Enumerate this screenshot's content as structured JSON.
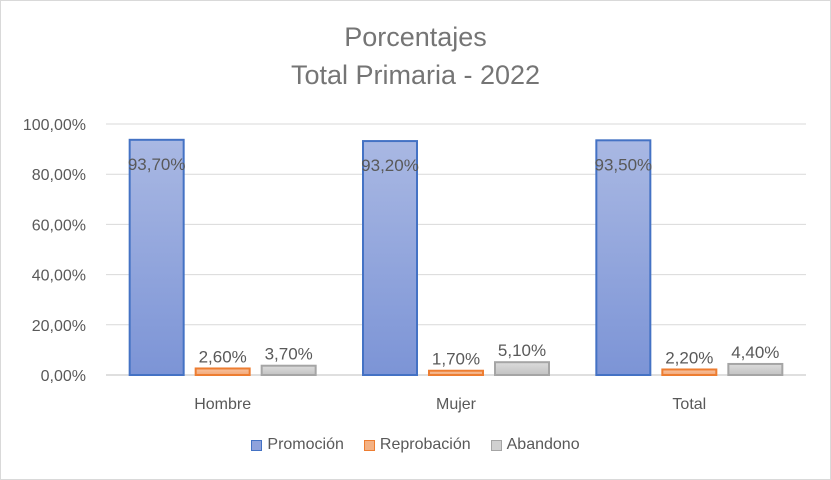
{
  "chart_data": {
    "type": "bar",
    "title": "Porcentajes",
    "subtitle": "Total Primaria - 2022",
    "categories": [
      "Hombre",
      "Mujer",
      "Total"
    ],
    "series": [
      {
        "name": "Promoción",
        "values": [
          93.7,
          93.2,
          93.5
        ],
        "labels": [
          "93,70%",
          "93,20%",
          "93,50%"
        ],
        "color": "#8fa2dc",
        "stroke": "#4472c4"
      },
      {
        "name": "Reprobación",
        "values": [
          2.6,
          1.7,
          2.2
        ],
        "labels": [
          "2,60%",
          "1,70%",
          "2,20%"
        ],
        "color": "#f4b183",
        "stroke": "#ed7d31"
      },
      {
        "name": "Abandono",
        "values": [
          3.7,
          5.1,
          4.4
        ],
        "labels": [
          "3,70%",
          "5,10%",
          "4,40%"
        ],
        "color": "#d0d0d0",
        "stroke": "#a5a5a5"
      }
    ],
    "ylim": [
      0,
      100
    ],
    "yticks": [
      0,
      20,
      40,
      60,
      80,
      100
    ],
    "ytick_labels": [
      "0,00%",
      "20,00%",
      "40,00%",
      "60,00%",
      "80,00%",
      "100,00%"
    ],
    "grid": true,
    "legend_position": "bottom"
  }
}
